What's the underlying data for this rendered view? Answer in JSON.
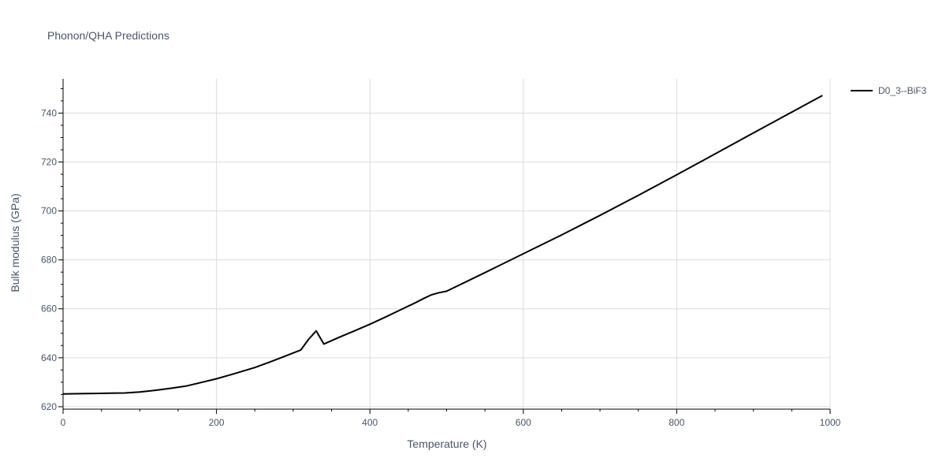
{
  "chart_data": {
    "type": "line",
    "title": "Phonon/QHA Predictions",
    "xlabel": "Temperature (K)",
    "ylabel": "Bulk modulus (GPa)",
    "xlim": [
      0,
      1000
    ],
    "ylim": [
      619,
      754
    ],
    "xticks": [
      0,
      200,
      400,
      600,
      800,
      1000
    ],
    "yticks": [
      620,
      640,
      660,
      680,
      700,
      720,
      740
    ],
    "grid": true,
    "legend_position": "top-right",
    "series": [
      {
        "name": "D0_3--BiF3",
        "color": "#000000",
        "x": [
          0,
          20,
          40,
          60,
          80,
          100,
          120,
          140,
          160,
          180,
          200,
          220,
          250,
          270,
          290,
          310,
          320,
          330,
          340,
          360,
          380,
          400,
          420,
          440,
          460,
          470,
          480,
          490,
          500,
          550,
          600,
          650,
          700,
          750,
          800,
          850,
          900,
          950,
          990
        ],
        "y": [
          625.2,
          625.3,
          625.4,
          625.5,
          625.6,
          626.0,
          626.7,
          627.5,
          628.4,
          629.9,
          631.4,
          633.2,
          636.0,
          638.3,
          640.7,
          643.2,
          647.5,
          651.0,
          645.6,
          648.4,
          651.0,
          653.7,
          656.6,
          659.6,
          662.6,
          664.2,
          665.7,
          666.6,
          667.2,
          674.8,
          682.5,
          690.2,
          698.2,
          706.4,
          714.8,
          723.3,
          731.9,
          740.4,
          747.2
        ]
      }
    ]
  }
}
